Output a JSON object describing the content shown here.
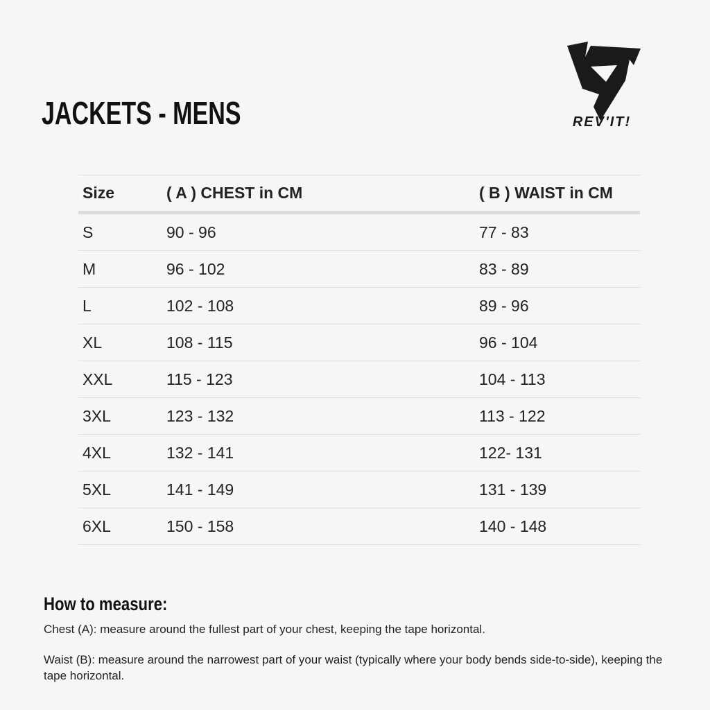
{
  "title": "JACKETS - MENS",
  "logo": {
    "text": "REV'IT!",
    "color": "#1a1a1a"
  },
  "table": {
    "headers": [
      "Size",
      "( A ) CHEST in CM",
      "( B ) WAIST in CM"
    ],
    "rows": [
      [
        "S",
        "90 - 96",
        "77 - 83"
      ],
      [
        "M",
        "96 - 102",
        "83 - 89"
      ],
      [
        "L",
        "102 - 108",
        "89 - 96"
      ],
      [
        "XL",
        "108 - 115",
        "96 - 104"
      ],
      [
        "XXL",
        "115 - 123",
        "104 - 113"
      ],
      [
        "3XL",
        "123 - 132",
        "113 - 122"
      ],
      [
        "4XL",
        "132 - 141",
        "122- 131"
      ],
      [
        "5XL",
        "141 - 149",
        "131 - 139"
      ],
      [
        "6XL",
        "150 - 158",
        "140 - 148"
      ]
    ]
  },
  "how_to": {
    "heading": "How to measure:",
    "chest": "Chest (A): measure around the fullest part of your chest, keeping the tape horizontal.",
    "waist": "Waist (B): measure around the narrowest part of your waist (typically where your body bends side-to-side), keeping the tape horizontal."
  }
}
